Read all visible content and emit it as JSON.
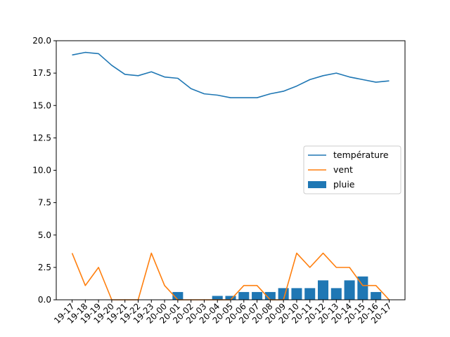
{
  "chart_data": {
    "type": "bar+line",
    "categories": [
      "19-17",
      "19-18",
      "19-19",
      "19-20",
      "19-21",
      "19-22",
      "19-23",
      "20-00",
      "20-01",
      "20-02",
      "20-03",
      "20-04",
      "20-05",
      "20-06",
      "20-07",
      "20-08",
      "20-09",
      "20-10",
      "20-11",
      "20-12",
      "20-13",
      "20-14",
      "20-15",
      "20-16",
      "20-17"
    ],
    "series": [
      {
        "name": "température",
        "type": "line",
        "color": "#1f77b4",
        "values": [
          18.9,
          19.1,
          19.0,
          18.1,
          17.4,
          17.3,
          17.6,
          17.2,
          17.1,
          16.3,
          15.9,
          15.8,
          15.6,
          15.6,
          15.6,
          15.9,
          16.1,
          16.5,
          17.0,
          17.3,
          17.5,
          17.2,
          17.0,
          16.8,
          16.9
        ]
      },
      {
        "name": "vent",
        "type": "line",
        "color": "#ff7f0e",
        "values": [
          3.6,
          1.1,
          2.5,
          0,
          0,
          0,
          3.6,
          1.1,
          0,
          0,
          0,
          0,
          0,
          1.1,
          1.1,
          0,
          0,
          3.6,
          2.5,
          3.6,
          2.5,
          2.5,
          1.1,
          1.1,
          0
        ]
      },
      {
        "name": "pluie",
        "type": "bar",
        "color": "#1f77b4",
        "values": [
          0,
          0,
          0,
          0,
          0,
          0,
          0,
          0,
          0.6,
          0,
          0,
          0.3,
          0.3,
          0.6,
          0.6,
          0.6,
          0.9,
          0.9,
          0.9,
          1.5,
          0.9,
          1.5,
          1.8,
          0.6,
          0
        ]
      }
    ],
    "ylim": [
      0,
      20
    ],
    "yticks": [
      "0.0",
      "2.5",
      "5.0",
      "7.5",
      "10.0",
      "12.5",
      "15.0",
      "17.5",
      "20.0"
    ],
    "legend_position": "center-right",
    "grid": false
  }
}
